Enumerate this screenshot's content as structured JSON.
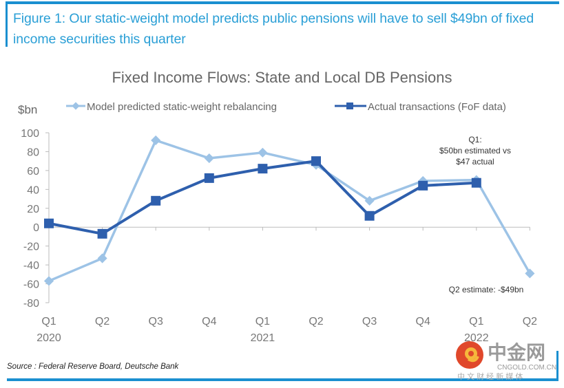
{
  "figure_title": "Figure 1: Our static-weight model predicts public pensions will have to sell $49bn of fixed income securities this quarter",
  "source": "Source : Federal Reserve Board, Deutsche Bank",
  "watermark": {
    "brand": "中金网",
    "domain": "CNGOLD.COM.CN",
    "tagline": "中 文 财 经 新 媒 体",
    "icon": "cngold-logo-icon"
  },
  "colors": {
    "frame": "#1a8fd0",
    "title": "#2a9fd6",
    "model_series": "#9dc3e6",
    "actual_series": "#2e5fad"
  },
  "chart_data": {
    "type": "line",
    "title": "Fixed Income Flows: State and Local DB Pensions",
    "ylabel": "$bn",
    "xlabel": "",
    "ylim": [
      -80,
      100
    ],
    "yticks": [
      100,
      80,
      60,
      40,
      20,
      0,
      -20,
      -40,
      -60,
      -80
    ],
    "grid": false,
    "legend_position": "top",
    "categories": [
      "Q1",
      "Q2",
      "Q3",
      "Q4",
      "Q1",
      "Q2",
      "Q3",
      "Q4",
      "Q1",
      "Q2"
    ],
    "year_labels": [
      {
        "index": 0,
        "label": "2020"
      },
      {
        "index": 4,
        "label": "2021"
      },
      {
        "index": 8,
        "label": "2022"
      }
    ],
    "series": [
      {
        "name": "Model predicted static-weight rebalancing",
        "marker": "diamond",
        "values": [
          -57,
          -33,
          92,
          73,
          79,
          66,
          28,
          49,
          50,
          -49
        ]
      },
      {
        "name": "Actual transactions (FoF data)",
        "marker": "square",
        "values": [
          4,
          -7,
          28,
          52,
          62,
          70,
          12,
          44,
          47,
          null
        ]
      }
    ],
    "annotations": [
      {
        "lines": [
          "Q1:",
          "$50bn  estimated vs",
          "$47  actual"
        ],
        "anchor_index": 8
      },
      {
        "lines": [
          "Q2 estimate:  -$49bn"
        ],
        "anchor_index": 9
      }
    ]
  }
}
